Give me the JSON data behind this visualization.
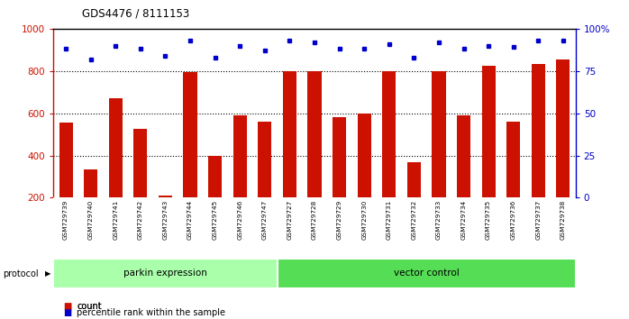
{
  "title": "GDS4476 / 8111153",
  "samples": [
    "GSM729739",
    "GSM729740",
    "GSM729741",
    "GSM729742",
    "GSM729743",
    "GSM729744",
    "GSM729745",
    "GSM729746",
    "GSM729747",
    "GSM729727",
    "GSM729728",
    "GSM729729",
    "GSM729730",
    "GSM729731",
    "GSM729732",
    "GSM729733",
    "GSM729734",
    "GSM729735",
    "GSM729736",
    "GSM729737",
    "GSM729738"
  ],
  "counts": [
    555,
    335,
    670,
    525,
    210,
    795,
    400,
    590,
    560,
    800,
    800,
    580,
    600,
    800,
    370,
    800,
    590,
    825,
    560,
    835,
    855
  ],
  "percentiles": [
    88,
    82,
    90,
    88,
    84,
    93,
    83,
    90,
    87,
    93,
    92,
    88,
    88,
    91,
    83,
    92,
    88,
    90,
    89,
    93,
    93
  ],
  "bar_color": "#CC1100",
  "dot_color": "#0000CC",
  "ylim_left": [
    200,
    1000
  ],
  "ylim_right": [
    0,
    100
  ],
  "yticks_left": [
    200,
    400,
    600,
    800,
    1000
  ],
  "yticks_right": [
    0,
    25,
    50,
    75,
    100
  ],
  "grid_values": [
    400,
    600,
    800
  ],
  "parkin_count": 9,
  "vector_count": 12,
  "parkin_color": "#AAFFAA",
  "vector_color": "#55DD55",
  "legend_count_color": "#CC1100",
  "legend_pct_color": "#0000CC",
  "bg_color": "#FFFFFF",
  "plot_bg": "#FFFFFF",
  "tick_area_bg": "#C8C8C8"
}
